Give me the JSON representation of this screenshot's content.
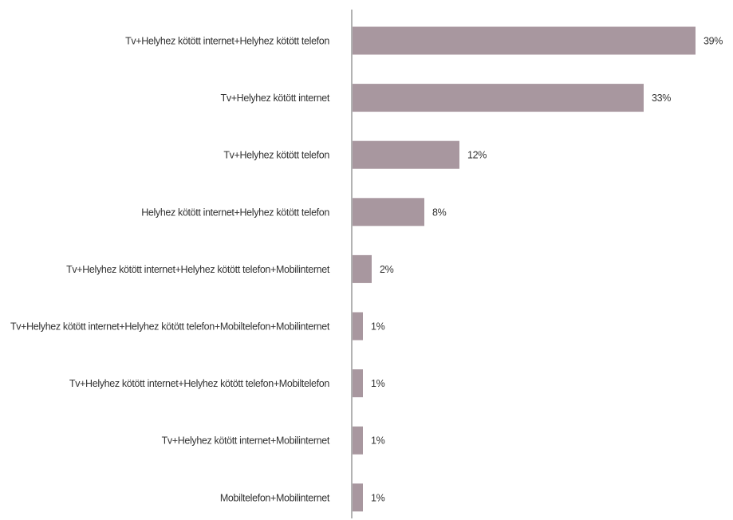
{
  "chart_data": {
    "type": "bar",
    "orientation": "horizontal",
    "categories": [
      "Tv+Helyhez kötött internet+Helyhez kötött telefon",
      "Tv+Helyhez kötött internet",
      "Tv+Helyhez kötött telefon",
      "Helyhez kötött internet+Helyhez kötött telefon",
      "Tv+Helyhez kötött internet+Helyhez kötött telefon+Mobilinternet",
      "Tv+Helyhez kötött internet+Helyhez kötött telefon+Mobiltelefon+Mobilinternet",
      "Tv+Helyhez kötött internet+Helyhez kötött telefon+Mobiltelefon",
      "Tv+Helyhez kötött internet+Mobilinternet",
      "Mobiltelefon+Mobilinternet"
    ],
    "values": [
      39,
      33,
      12,
      8,
      2,
      1,
      1,
      1,
      1
    ],
    "value_labels": [
      "39%",
      "33%",
      "12%",
      "8%",
      "2%",
      "1%",
      "1%",
      "1%",
      "1%"
    ],
    "unit": "%",
    "xlim": [
      0,
      40
    ],
    "grid": false,
    "legend": "none",
    "colors": {
      "bar": "#a8979f",
      "axis": "#b3b3b3",
      "text": "#333333"
    }
  }
}
